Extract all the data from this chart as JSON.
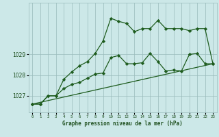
{
  "line1_x": [
    0,
    1,
    2,
    3,
    4,
    5,
    6,
    7,
    8,
    9,
    10,
    11,
    12,
    13,
    14,
    15,
    16,
    17,
    18,
    19,
    20,
    21,
    22,
    23
  ],
  "line1_y": [
    1026.6,
    1026.6,
    1027.0,
    1027.0,
    1027.8,
    1028.15,
    1028.45,
    1028.65,
    1029.05,
    1029.65,
    1030.75,
    1030.6,
    1030.5,
    1030.1,
    1030.25,
    1030.25,
    1030.65,
    1030.25,
    1030.25,
    1030.25,
    1030.15,
    1030.25,
    1030.25,
    1028.55
  ],
  "line2_x": [
    0,
    1,
    2,
    3,
    4,
    5,
    6,
    7,
    8,
    9,
    10,
    11,
    12,
    13,
    14,
    15,
    16,
    17,
    18,
    19,
    20,
    21,
    22,
    23
  ],
  "line2_y": [
    1026.6,
    1026.6,
    1027.0,
    1027.0,
    1027.35,
    1027.55,
    1027.65,
    1027.85,
    1028.05,
    1028.1,
    1028.85,
    1028.95,
    1028.55,
    1028.55,
    1028.6,
    1029.05,
    1028.65,
    1028.2,
    1028.25,
    1028.2,
    1029.0,
    1029.05,
    1028.55,
    1028.55
  ],
  "line3_x": [
    0,
    23
  ],
  "line3_y": [
    1026.6,
    1028.55
  ],
  "yticks": [
    1027,
    1028,
    1029
  ],
  "ymin": 1026.2,
  "ymax": 1031.5,
  "xmin": -0.5,
  "xmax": 23.5,
  "xlabel": "Graphe pression niveau de la mer (hPa)",
  "bg_color": "#cce8e8",
  "line_color": "#1e5c1e",
  "grid_color": "#99bbbb",
  "text_color": "#1e4f1e"
}
